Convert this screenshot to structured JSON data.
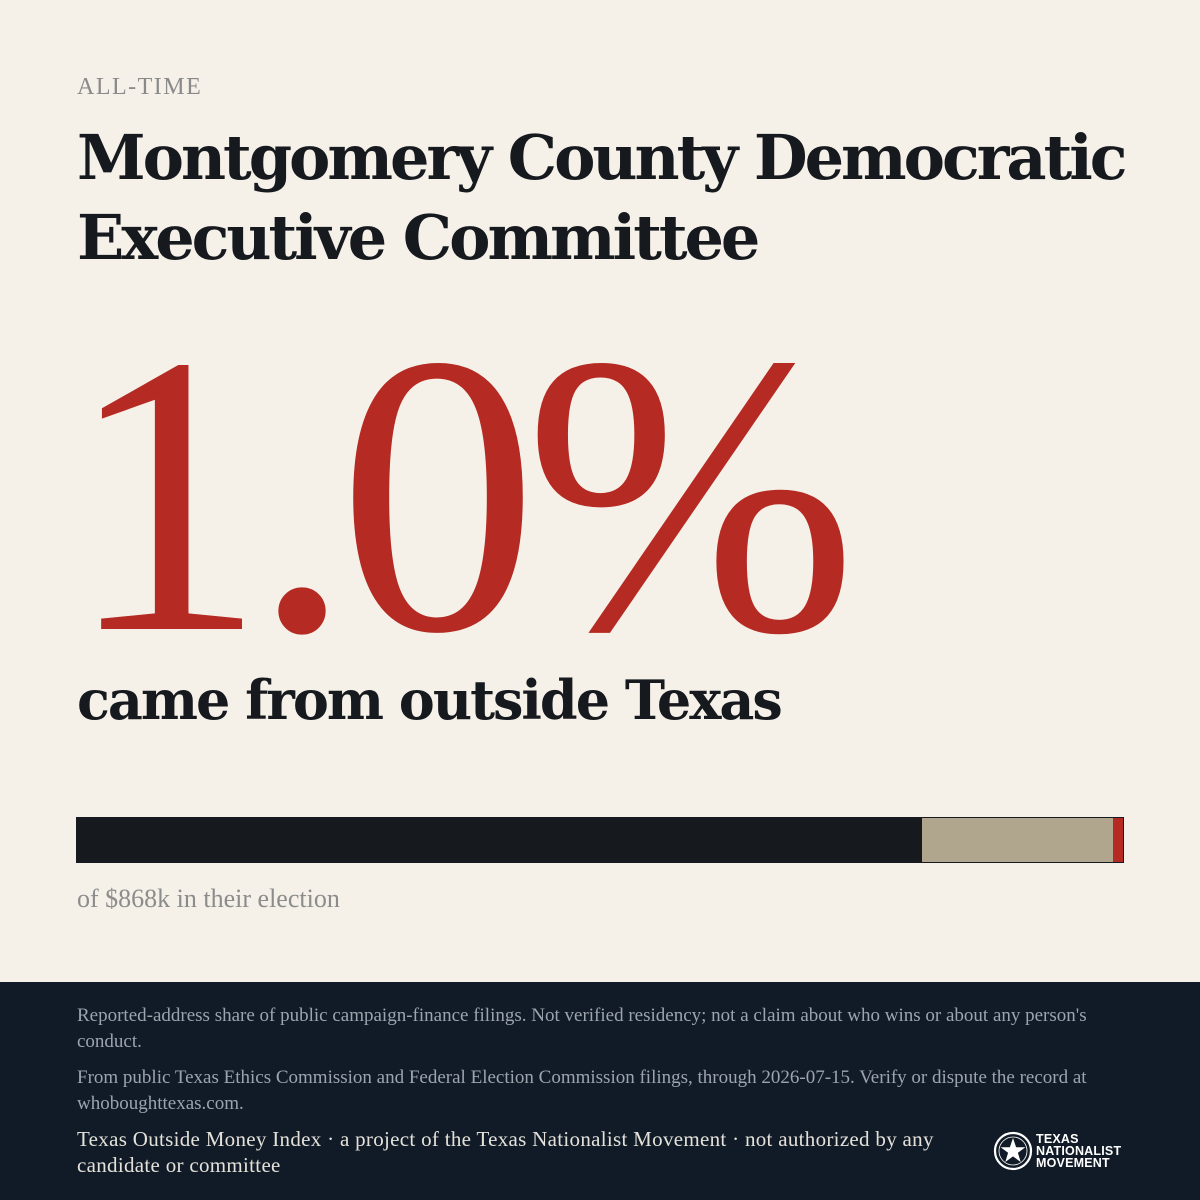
{
  "kicker": "ALL-TIME",
  "title_line1": "Montgomery County Democratic",
  "title_line2": "Executive Committee",
  "headline_stat": "1.0%",
  "headline_caption": "came from outside Texas",
  "share_bar": {
    "in_state_fraction": 0.808,
    "unknown_fraction": 0.182,
    "outside_fraction": 0.01,
    "colors": {
      "in_state": "#16191e",
      "unknown": "#b0a58d",
      "outside": "#b52a22"
    }
  },
  "total_line": "of $868k in their election",
  "footer": {
    "disclaimer": "Reported-address share of public campaign-finance filings. Not verified residency; not a claim about who wins or about any person's conduct.",
    "source": "From public Texas Ethics Commission and Federal Election Commission filings, through 2026-07-15. Verify or dispute the record at whoboughttexas.com.",
    "credit": "Texas Outside Money Index · a project of the Texas Nationalist Movement · not authorized by any candidate or committee",
    "logo": {
      "icon": "star-seal-icon",
      "line1": "TEXAS",
      "line2": "NATIONALIST",
      "line3": "MOVEMENT"
    }
  },
  "colors": {
    "background": "#f5f0e8",
    "accent": "#b52a22",
    "ink": "#16191e",
    "footer_bg": "#111b27"
  }
}
